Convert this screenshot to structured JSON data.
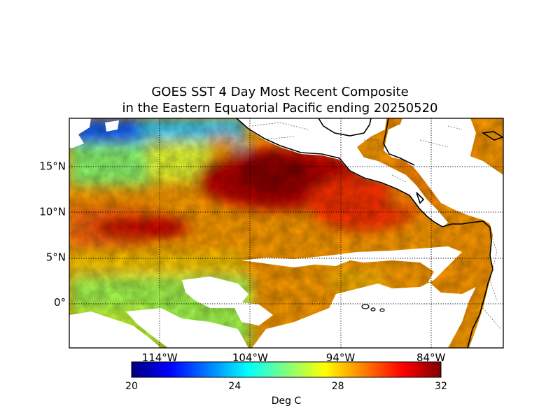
{
  "title": {
    "line1": "GOES SST 4 Day Most Recent Composite",
    "line2": "in the Eastern Equatorial Pacific ending 20250520"
  },
  "map": {
    "type": "sea-surface-temperature map",
    "lon_range_deg": [
      -124,
      -76
    ],
    "lat_range_deg": [
      -5,
      20.3
    ],
    "graticule_style": "dotted",
    "longitude_ticks": [
      {
        "value": -114,
        "label": "114°W"
      },
      {
        "value": -104,
        "label": "104°W"
      },
      {
        "value": -94,
        "label": "94°W"
      },
      {
        "value": -84,
        "label": "84°W"
      }
    ],
    "latitude_ticks": [
      {
        "value": 15,
        "label": "15°N"
      },
      {
        "value": 10,
        "label": "10°N"
      },
      {
        "value": 5,
        "label": "5°N"
      },
      {
        "value": 0,
        "label": "0°"
      }
    ]
  },
  "colorbar": {
    "colormap": "jet",
    "min": 20,
    "max": 32,
    "ticks": [
      {
        "value": 20,
        "label": "20"
      },
      {
        "value": 24,
        "label": "24"
      },
      {
        "value": 28,
        "label": "28"
      },
      {
        "value": 32,
        "label": "32"
      }
    ],
    "unit_label": "Deg C",
    "stops": [
      "#00007f",
      "#0000ff",
      "#007fff",
      "#00ffff",
      "#7fff7f",
      "#ffff00",
      "#ff7f00",
      "#ff0000",
      "#7f0000"
    ]
  }
}
